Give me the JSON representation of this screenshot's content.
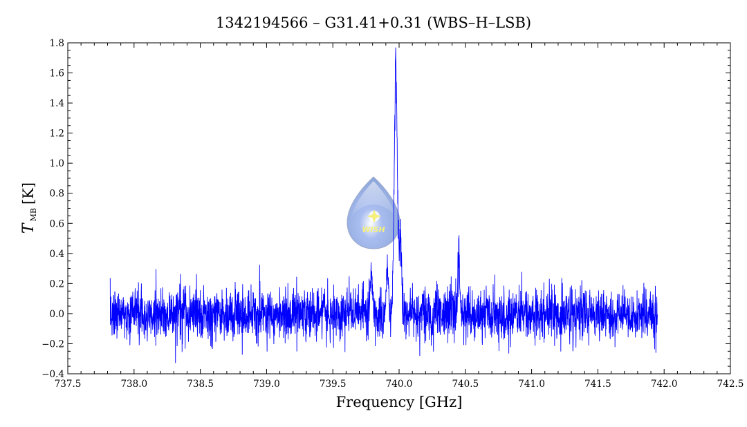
{
  "chart_data": {
    "type": "line",
    "title": "1342194566 – G31.41+0.31 (WBS–H–LSB)",
    "xlabel": "Frequency [GHz]",
    "ylabel_symbol": "T",
    "ylabel_subscript": "MB",
    "ylabel_unit": "[K]",
    "xlim": [
      737.5,
      742.5
    ],
    "ylim": [
      -0.4,
      1.8
    ],
    "x_ticks": [
      "737.5",
      "738.0",
      "738.5",
      "739.0",
      "739.5",
      "740.0",
      "740.5",
      "741.0",
      "741.5",
      "742.0",
      "742.5"
    ],
    "y_ticks": [
      "−0.4",
      "−0.2",
      "0.0",
      "0.2",
      "0.4",
      "0.6",
      "0.8",
      "1.0",
      "1.2",
      "1.4",
      "1.6",
      "1.8"
    ],
    "series_color": "#0000ff",
    "series": [
      {
        "x_range": [
          737.82,
          741.95
        ],
        "noise_rms": 0.085,
        "baseline": 0.0,
        "features": [
          {
            "x": 739.79,
            "peak": 0.3
          },
          {
            "x": 739.915,
            "peak": 0.28
          },
          {
            "x": 739.975,
            "peak": 1.58
          },
          {
            "x": 740.01,
            "peak": 0.52
          },
          {
            "x": 740.45,
            "peak": 0.4
          }
        ]
      }
    ]
  },
  "logo": {
    "text": "WISH",
    "color": "#8fa8dc"
  }
}
